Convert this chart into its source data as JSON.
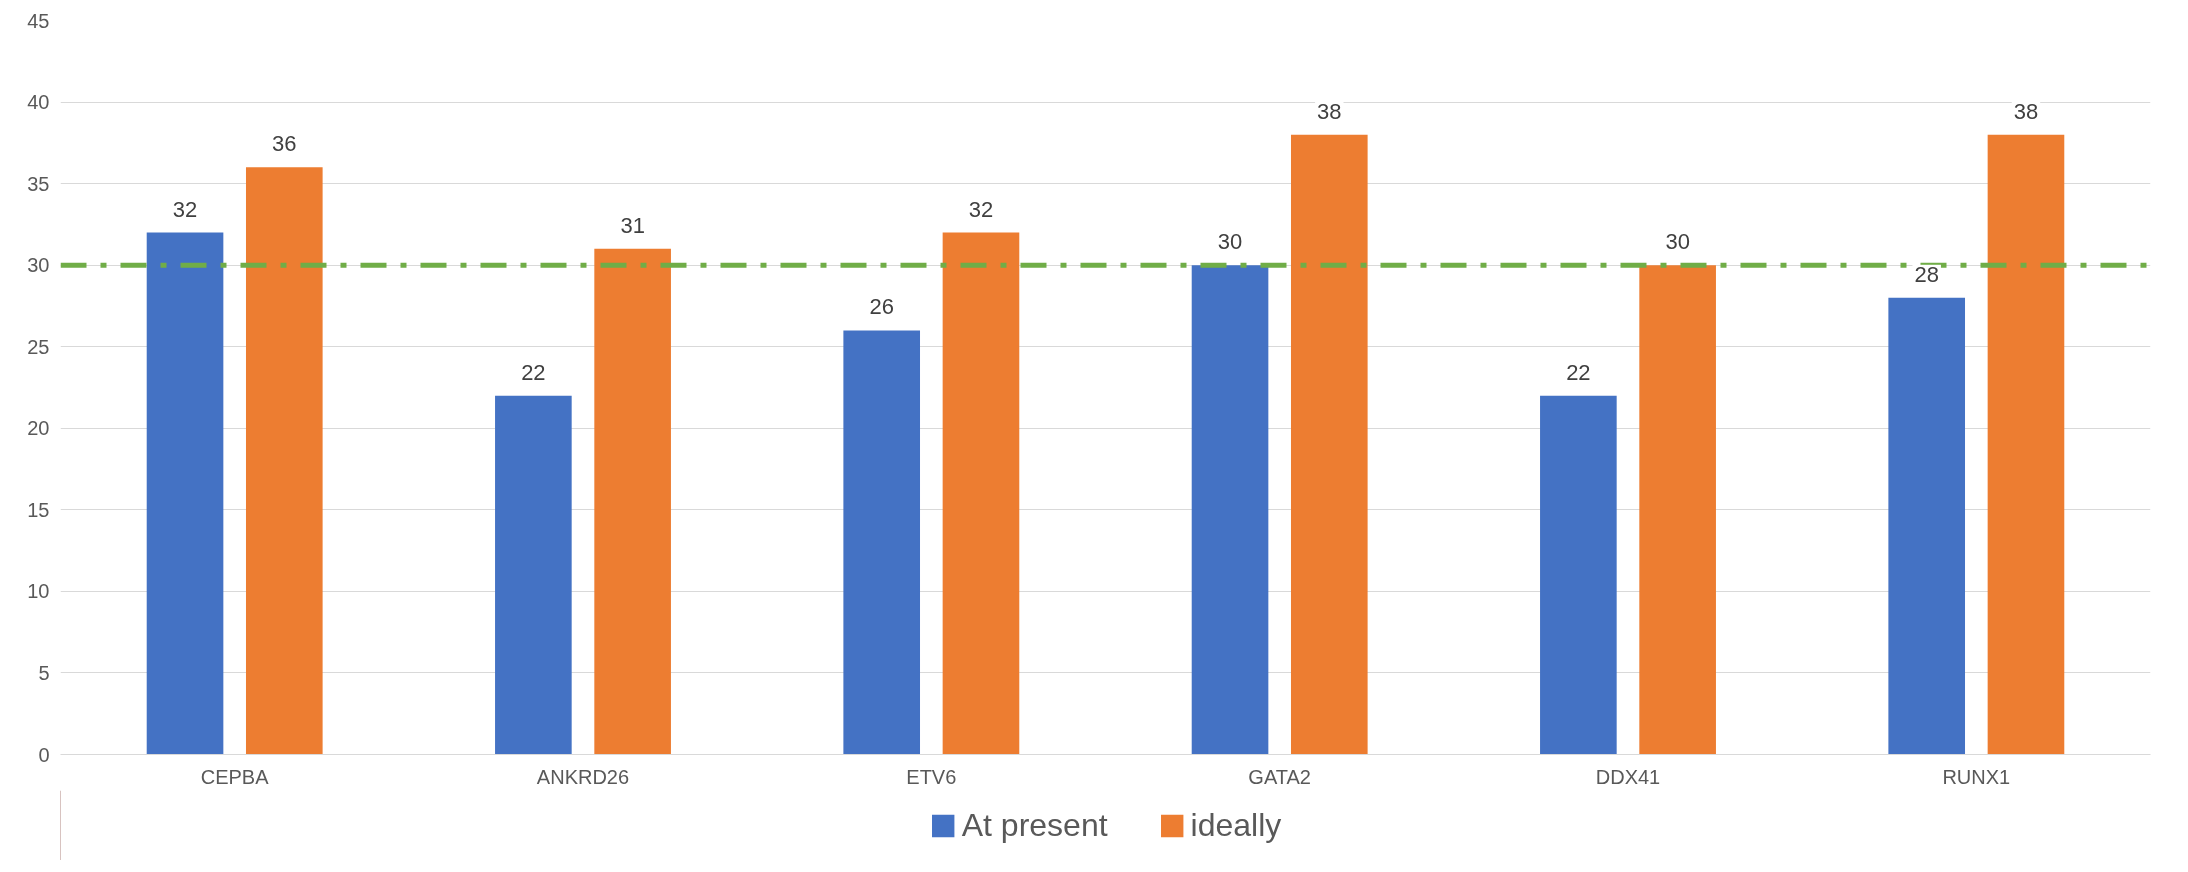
{
  "chart_data": {
    "type": "bar",
    "categories": [
      "CEPBA",
      "ANKRD26",
      "ETV6",
      "GATA2",
      "DDX41",
      "RUNX1"
    ],
    "series": [
      {
        "name": "At present",
        "color": "#4472c4",
        "values": [
          32,
          22,
          26,
          30,
          22,
          28
        ]
      },
      {
        "name": "ideally",
        "color": "#ed7d31",
        "values": [
          36,
          31,
          32,
          38,
          30,
          38
        ]
      }
    ],
    "ylim": [
      0,
      45
    ],
    "yticks": [
      0,
      5,
      10,
      15,
      20,
      25,
      30,
      35,
      40,
      45
    ],
    "grid": "y",
    "legend": "bottom",
    "data_labels": true,
    "ref_lines": [
      {
        "axis": "y",
        "value": 30,
        "color": "#70ad47",
        "line_style": "dashdot"
      }
    ]
  }
}
